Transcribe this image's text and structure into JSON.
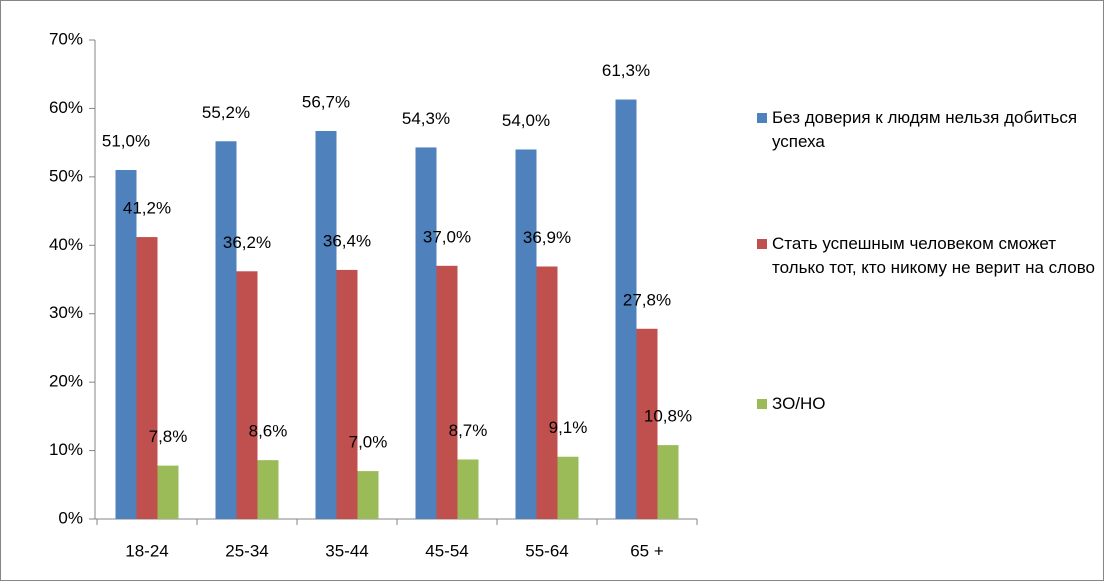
{
  "chart_data": {
    "type": "bar",
    "categories": [
      "18-24",
      "25-34",
      "35-44",
      "45-54",
      "55-64",
      "65 +"
    ],
    "series": [
      {
        "name": "Без доверия к людям нельзя добиться успеха",
        "color": "#4f81bd",
        "values": [
          51.0,
          55.2,
          56.7,
          54.3,
          54.0,
          61.3
        ],
        "value_labels": [
          "51,0%",
          "55,2%",
          "56,7%",
          "54,3%",
          "54,0%",
          "61,3%"
        ]
      },
      {
        "name": "Стать успешным человеком сможет только тот, кто никому не верит на слово",
        "color": "#c0504d",
        "values": [
          41.2,
          36.2,
          36.4,
          37.0,
          36.9,
          27.8
        ],
        "value_labels": [
          "41,2%",
          "36,2%",
          "36,4%",
          "37,0%",
          "36,9%",
          "27,8%"
        ]
      },
      {
        "name": "ЗО/НО",
        "color": "#9bbb59",
        "values": [
          7.8,
          8.6,
          7.0,
          8.7,
          9.1,
          10.8
        ],
        "value_labels": [
          "7,8%",
          "8,6%",
          "7,0%",
          "8,7%",
          "9,1%",
          "10,8%"
        ]
      }
    ],
    "ylim": [
      0,
      70
    ],
    "yticks": [
      {
        "value": 0,
        "label": "0%"
      },
      {
        "value": 10,
        "label": "10%"
      },
      {
        "value": 20,
        "label": "20%"
      },
      {
        "value": 30,
        "label": "30%"
      },
      {
        "value": 40,
        "label": "40%"
      },
      {
        "value": 50,
        "label": "50%"
      },
      {
        "value": 60,
        "label": "60%"
      },
      {
        "value": 70,
        "label": "70%"
      }
    ],
    "legend": "right"
  }
}
